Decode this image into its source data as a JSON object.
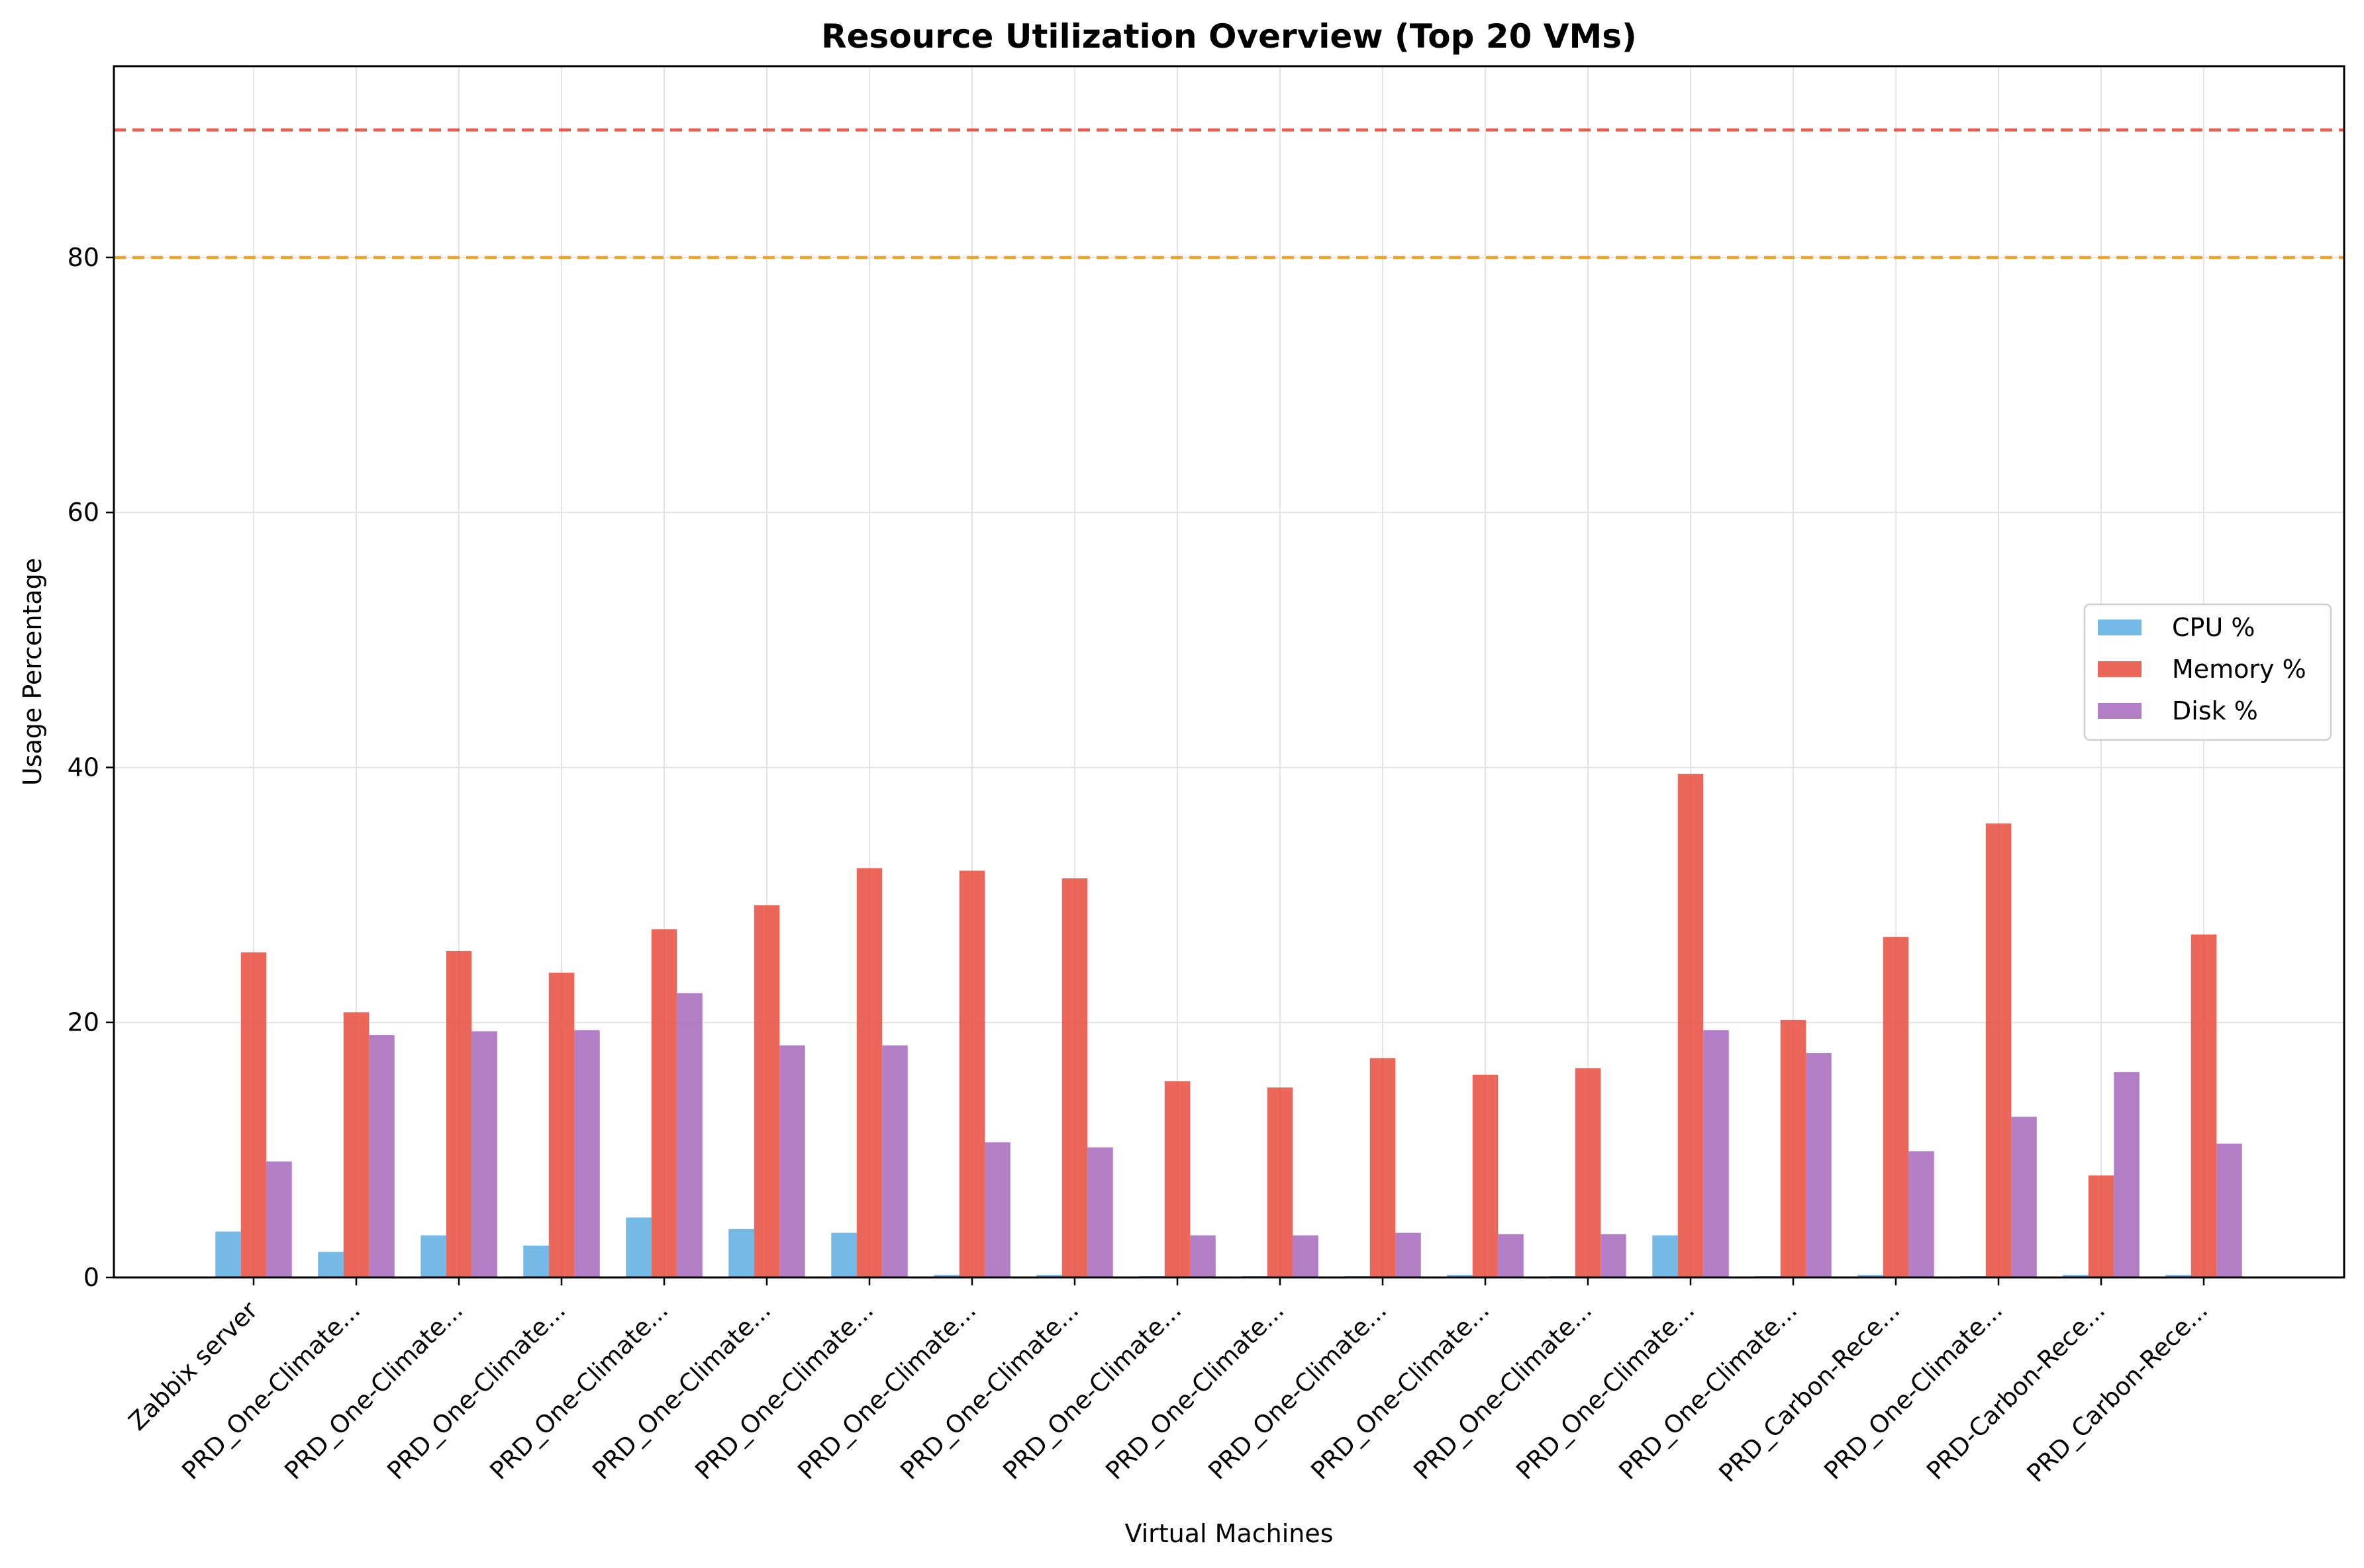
{
  "chart_data": {
    "type": "bar",
    "title": "Resource Utilization Overview (Top 20 VMs)",
    "xlabel": "Virtual Machines",
    "ylabel": "Usage Percentage",
    "ylim": [
      0,
      95
    ],
    "yticks": [
      0,
      20,
      40,
      60,
      80
    ],
    "grid": true,
    "legend_position": "center-right",
    "categories": [
      "Zabbix server",
      "PRD_One-Climate...",
      "PRD_One-Climate...",
      "PRD_One-Climate...",
      "PRD_One-Climate...",
      "PRD_One-Climate...",
      "PRD_One-Climate...",
      "PRD_One-Climate...",
      "PRD_One-Climate...",
      "PRD_One-Climate...",
      "PRD_One-Climate...",
      "PRD_One-Climate...",
      "PRD_One-Climate...",
      "PRD_One-Climate...",
      "PRD_One-Climate...",
      "PRD_One-Climate...",
      "PRD_Carbon-Rece...",
      "PRD_One-Climate...",
      "PRD-Carbon-Rece...",
      "PRD_Carbon-Rece..."
    ],
    "series": [
      {
        "name": "CPU %",
        "color": "#5dade2",
        "values": [
          3.6,
          2.0,
          3.3,
          2.5,
          4.7,
          3.8,
          3.5,
          0.2,
          0.2,
          0.1,
          0.1,
          0.1,
          0.2,
          0.1,
          3.3,
          0.1,
          0.2,
          0.1,
          0.2,
          0.2
        ]
      },
      {
        "name": "Memory %",
        "color": "#e74c3c",
        "values": [
          25.5,
          20.8,
          25.6,
          23.9,
          27.3,
          29.2,
          32.1,
          31.9,
          31.3,
          15.4,
          14.9,
          17.2,
          15.9,
          16.4,
          39.5,
          20.2,
          26.7,
          35.6,
          8.0,
          26.9
        ]
      },
      {
        "name": "Disk %",
        "color": "#a569bd",
        "values": [
          9.1,
          19.0,
          19.3,
          19.4,
          22.3,
          18.2,
          18.2,
          10.6,
          10.2,
          3.3,
          3.3,
          3.5,
          3.4,
          3.4,
          19.4,
          17.6,
          9.9,
          12.6,
          16.1,
          10.5
        ]
      }
    ],
    "threshold_lines": [
      {
        "value": 90,
        "color": "#e74c3c",
        "style": "dashed"
      },
      {
        "value": 80,
        "color": "#f39c12",
        "style": "dashed"
      }
    ]
  }
}
